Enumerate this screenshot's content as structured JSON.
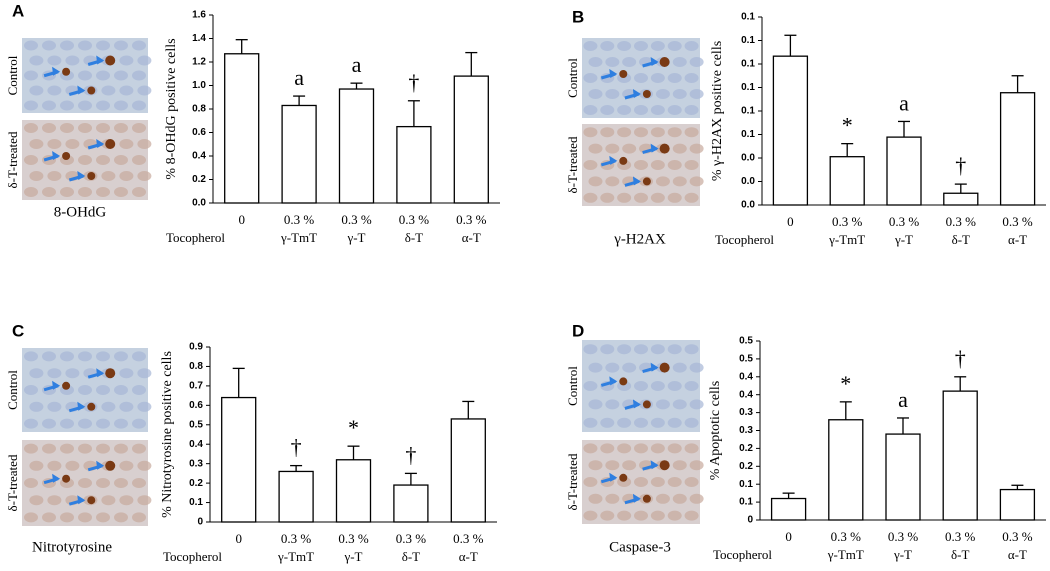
{
  "chart_data": [
    {
      "type": "bar",
      "panel_label": "A",
      "image_caption": "8-OHdG",
      "image_labels": [
        "Control",
        "δ-T-treated"
      ],
      "ylabel": "% 8-OHdG positive cells",
      "xlabel": "Tocopherol",
      "categories": [
        "0",
        "0.3 %",
        "0.3 %",
        "0.3 %",
        "0.3 %"
      ],
      "subcategories": [
        null,
        "γ-TmT",
        "γ-T",
        "δ-T",
        "α-T"
      ],
      "values": [
        1.27,
        0.83,
        0.97,
        0.65,
        1.08
      ],
      "errors": [
        0.12,
        0.08,
        0.05,
        0.22,
        0.2
      ],
      "annotations": [
        null,
        "a",
        "a",
        "†",
        null
      ],
      "color": "#ffffff",
      "ylim": [
        0,
        1.6
      ],
      "yticks": [
        {
          "value": 0,
          "label": "0.0"
        },
        0.2,
        0.4,
        0.6,
        0.8,
        {
          "value": 1,
          "label": "1.0"
        },
        1.2,
        1.4,
        1.6
      ]
    },
    {
      "type": "bar",
      "panel_label": "B",
      "image_caption": "γ-H2AX",
      "image_labels": [
        "Control",
        "δ-T-treated"
      ],
      "ylabel": "% γ-H2AX positive cells",
      "xlabel": "Tocopherol",
      "categories": [
        "0",
        "0.3 %",
        "0.3 %",
        "0.3 %",
        "0.3 %"
      ],
      "subcategories": [
        null,
        "γ-TmT",
        "γ-T",
        "δ-T",
        "α-T"
      ],
      "values": [
        0.114,
        0.037,
        0.052,
        0.009,
        0.086
      ],
      "errors": [
        0.016,
        0.01,
        0.012,
        0.007,
        0.013
      ],
      "annotations": [
        null,
        "*",
        "a",
        "†",
        null
      ],
      "color": "#ffffff",
      "ylim": [
        0,
        0.144
      ],
      "yticks": [
        {
          "value": 0,
          "label": "0.0"
        },
        {
          "value": 0.018,
          "label": "0.0"
        },
        {
          "value": 0.036,
          "label": "0.0"
        },
        {
          "value": 0.054,
          "label": "0.1"
        },
        {
          "value": 0.072,
          "label": "0.1"
        },
        {
          "value": 0.09,
          "label": "0.1"
        },
        {
          "value": 0.108,
          "label": "0.1"
        },
        {
          "value": 0.126,
          "label": "0.1"
        },
        {
          "value": 0.144,
          "label": "0.1"
        }
      ]
    },
    {
      "type": "bar",
      "panel_label": "C",
      "image_caption": "Nitrotyrosine",
      "image_labels": [
        "Control",
        "δ-T-treated"
      ],
      "ylabel": "% Nitrotyrosine positive cells",
      "xlabel": "Tocopherol",
      "categories": [
        "0",
        "0.3 %",
        "0.3 %",
        "0.3 %",
        "0.3 %"
      ],
      "subcategories": [
        null,
        "γ-TmT",
        "γ-T",
        "δ-T",
        "α-T"
      ],
      "values": [
        0.64,
        0.26,
        0.32,
        0.19,
        0.53
      ],
      "errors": [
        0.15,
        0.03,
        0.07,
        0.06,
        0.09
      ],
      "annotations": [
        null,
        "†",
        "*",
        "†",
        null
      ],
      "color": "#ffffff",
      "ylim": [
        0,
        0.9
      ],
      "yticks": [
        0,
        0.1,
        0.2,
        0.3,
        0.4,
        0.5,
        0.6,
        0.7,
        0.8,
        0.9
      ]
    },
    {
      "type": "bar",
      "panel_label": "D",
      "image_caption": "Caspase-3",
      "image_labels": [
        "Control",
        "δ-T-treated"
      ],
      "ylabel": "% Apoptotic cells",
      "xlabel": "Tocopherol",
      "categories": [
        "0",
        "0.3 %",
        "0.3 %",
        "0.3 %",
        "0.3 %"
      ],
      "subcategories": [
        null,
        "γ-TmT",
        "γ-T",
        "δ-T",
        "α-T"
      ],
      "values": [
        0.06,
        0.28,
        0.24,
        0.36,
        0.085
      ],
      "errors": [
        0.015,
        0.05,
        0.045,
        0.04,
        0.012
      ],
      "annotations": [
        null,
        "*",
        "a",
        "†",
        null
      ],
      "color": "#ffffff",
      "ylim": [
        0,
        0.5
      ],
      "yticks": [
        0,
        {
          "value": 0.05,
          "label": "0.1"
        },
        0.1,
        {
          "value": 0.15,
          "label": "0.2"
        },
        0.2,
        {
          "value": 0.25,
          "label": "0.3"
        },
        0.3,
        {
          "value": 0.35,
          "label": "0.4"
        },
        0.4,
        {
          "value": 0.45,
          "label": "0.5"
        },
        0.5
      ]
    }
  ]
}
